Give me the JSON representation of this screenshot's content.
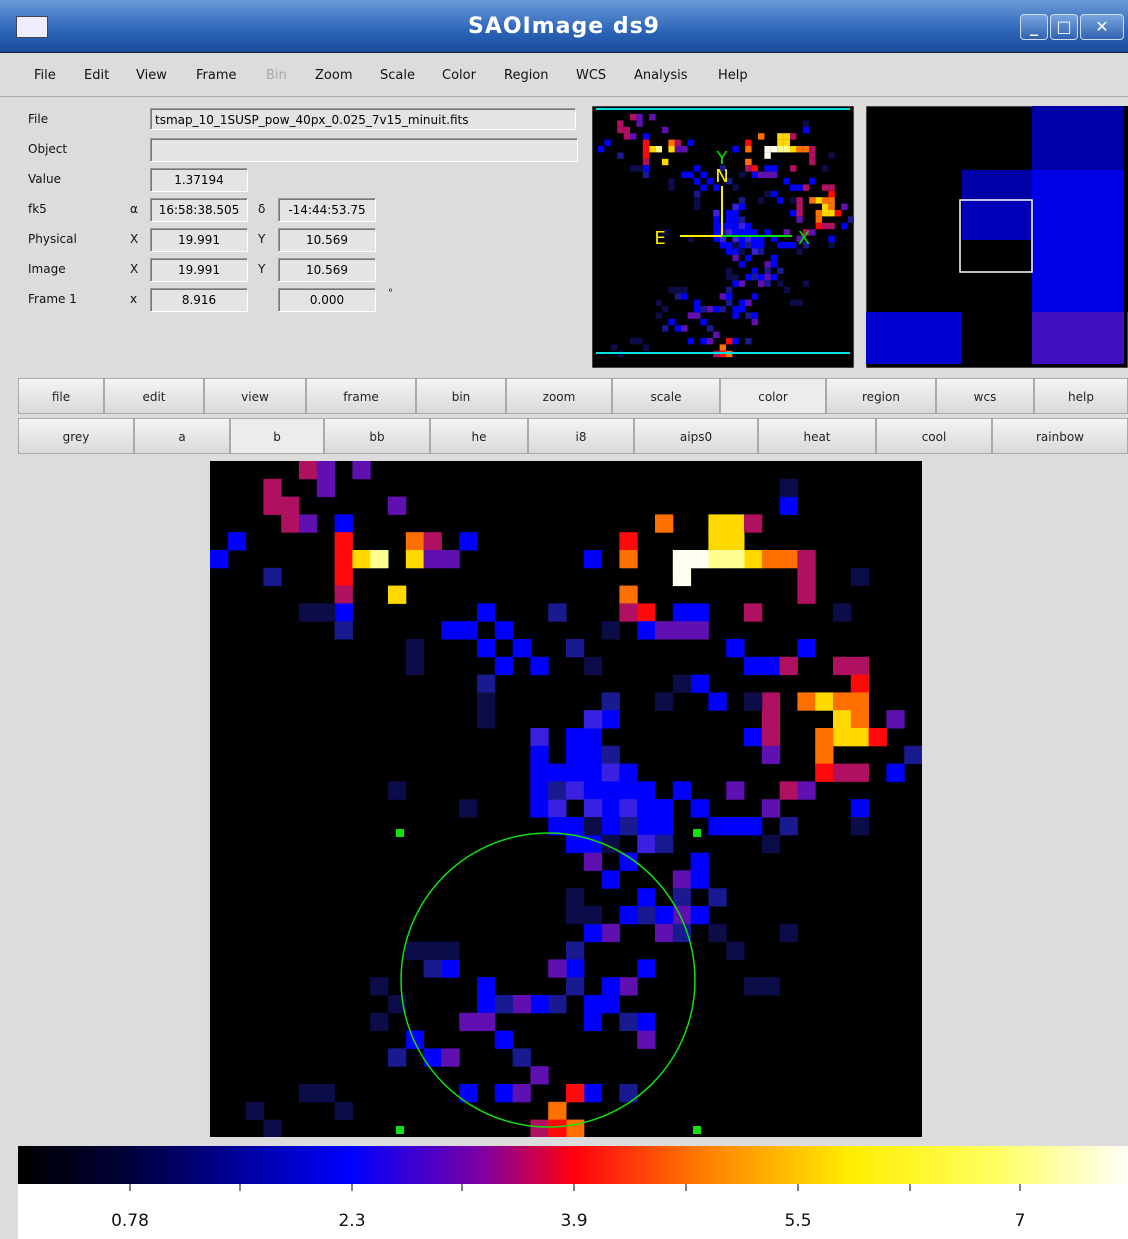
{
  "window": {
    "title": "SAOImage ds9"
  },
  "menu": [
    "File",
    "Edit",
    "View",
    "Frame",
    "Bin",
    "Zoom",
    "Scale",
    "Color",
    "Region",
    "WCS",
    "Analysis",
    "Help"
  ],
  "info": {
    "file": {
      "label": "File",
      "value": "tsmap_10_1SUSP_pow_40px_0.025_7v15_minuit.fits"
    },
    "object": {
      "label": "Object"
    },
    "value": {
      "label": "Value",
      "value": "1.37194"
    },
    "fk5": {
      "label": "fk5",
      "sym1": "α",
      "value1": "16:58:38.505",
      "sym2": "δ",
      "value2": "-14:44:53.75"
    },
    "physical": {
      "label": "Physical",
      "sym1": "X",
      "value1": "19.991",
      "sym2": "Y",
      "value2": "10.569"
    },
    "image": {
      "label": "Image",
      "sym1": "X",
      "value1": "19.991",
      "sym2": "Y",
      "value2": "10.569"
    },
    "frame": {
      "label": "Frame 1",
      "sym1": "x",
      "value1": "8.916",
      "value2": "0.000",
      "unit": "°"
    }
  },
  "panner": {
    "north": "N",
    "y": "Y",
    "east": "E",
    "x": "X"
  },
  "buttons": {
    "row1": [
      "file",
      "edit",
      "view",
      "frame",
      "bin",
      "zoom",
      "scale",
      "color",
      "region",
      "wcs",
      "help"
    ],
    "row2": [
      "grey",
      "a",
      "b",
      "bb",
      "he",
      "i8",
      "aips0",
      "heat",
      "cool",
      "rainbow"
    ]
  },
  "colorbar": {
    "labels": [
      "0.78",
      "2.3",
      "3.9",
      "5.5",
      "7"
    ]
  }
}
